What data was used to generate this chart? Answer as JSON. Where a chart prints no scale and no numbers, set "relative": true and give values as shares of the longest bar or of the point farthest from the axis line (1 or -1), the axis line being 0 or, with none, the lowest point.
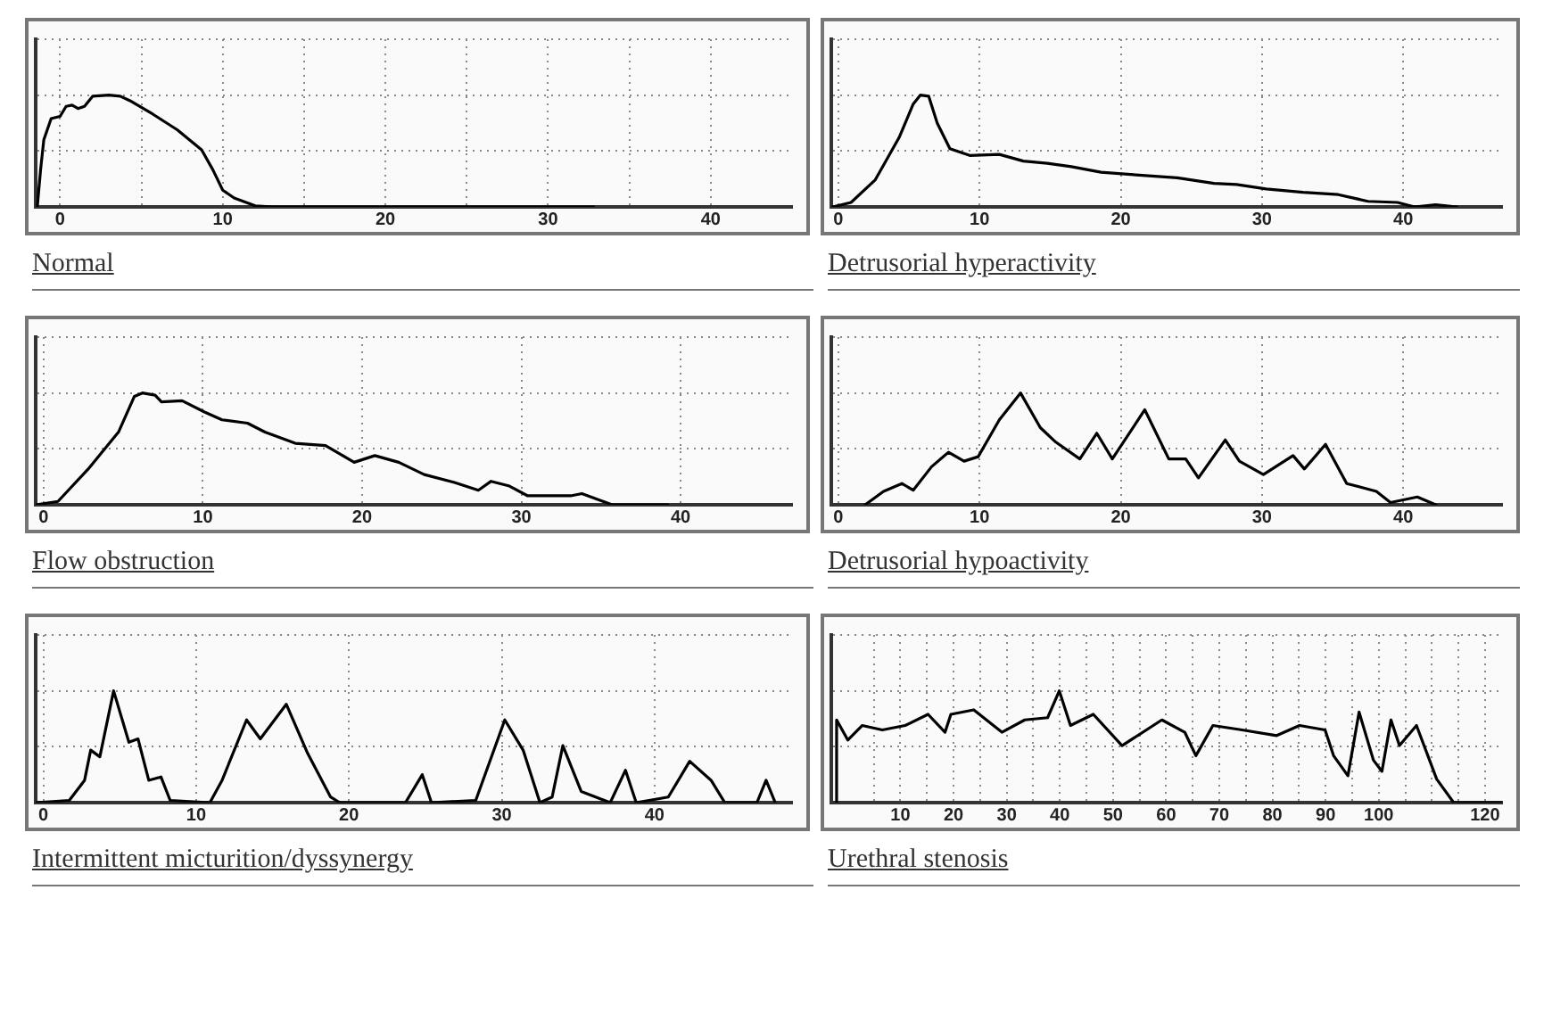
{
  "chart_data": [
    {
      "type": "line",
      "title": "Normal",
      "relative": true,
      "grid": true,
      "legend": false,
      "tick_labels": "x",
      "marker": "none",
      "xlim": [
        -1.5,
        45
      ],
      "xticks": [
        0,
        {
          "value": 5,
          "label": null
        },
        10,
        {
          "value": 15,
          "label": null
        },
        20,
        {
          "value": 25,
          "label": null
        },
        30,
        {
          "value": 35,
          "label": null
        },
        40
      ],
      "series": [
        {
          "color": "#000000",
          "x": [
            -1.4,
            -1.2,
            -1.0,
            -0.55,
            0,
            0.37,
            0.74,
            1.1,
            1.5,
            2.0,
            3.0,
            3.7,
            4.3,
            5.7,
            7.2,
            8.7,
            9.4,
            10,
            10.7,
            12,
            13.1,
            32.8
          ],
          "values": [
            0,
            0.33,
            0.6,
            0.79,
            0.81,
            0.9,
            0.91,
            0.88,
            0.9,
            0.99,
            1,
            0.99,
            0.95,
            0.83,
            0.69,
            0.51,
            0.33,
            0.15,
            0.08,
            0.01,
            0,
            0
          ]
        }
      ]
    },
    {
      "type": "line",
      "title": "Detrusorial hyperactivity",
      "relative": true,
      "grid": true,
      "legend": false,
      "tick_labels": "x",
      "marker": "none",
      "xlim": [
        -0.5,
        47
      ],
      "xticks": [
        0,
        10,
        20,
        30,
        40
      ],
      "series": [
        {
          "color": "#000000",
          "x": [
            -0.4,
            0.9,
            2.6,
            4.3,
            5.3,
            5.8,
            6.4,
            7.0,
            7.9,
            9.3,
            11.4,
            13.1,
            14.8,
            16.5,
            18.6,
            20.7,
            24.0,
            26.6,
            28.2,
            30.3,
            32.9,
            35.4,
            37.5,
            39.6,
            40.8,
            42.3,
            43.8
          ],
          "values": [
            0,
            0.04,
            0.24,
            0.62,
            0.92,
            1,
            0.99,
            0.75,
            0.52,
            0.46,
            0.47,
            0.41,
            0.39,
            0.36,
            0.31,
            0.29,
            0.26,
            0.21,
            0.2,
            0.16,
            0.13,
            0.11,
            0.05,
            0.04,
            0,
            0.02,
            0
          ]
        }
      ]
    },
    {
      "type": "line",
      "title": "Flow obstruction",
      "relative": true,
      "grid": true,
      "legend": false,
      "tick_labels": "x",
      "marker": "none",
      "xlim": [
        -0.5,
        47
      ],
      "xticks": [
        0,
        10,
        20,
        30,
        40
      ],
      "series": [
        {
          "color": "#000000",
          "x": [
            -0.5,
            0.9,
            2.8,
            4.7,
            5.7,
            6.2,
            7.0,
            7.4,
            8.7,
            10.1,
            11.2,
            12.8,
            13.9,
            15.8,
            17.7,
            19.5,
            20.8,
            22.3,
            23.9,
            25.8,
            27.3,
            28.1,
            29.2,
            30.4,
            33.1,
            33.8,
            35.7,
            39.2
          ],
          "values": [
            0,
            0.03,
            0.32,
            0.65,
            0.97,
            1,
            0.98,
            0.92,
            0.93,
            0.83,
            0.76,
            0.73,
            0.65,
            0.55,
            0.53,
            0.38,
            0.44,
            0.38,
            0.27,
            0.2,
            0.13,
            0.21,
            0.17,
            0.08,
            0.08,
            0.1,
            0,
            0
          ]
        }
      ]
    },
    {
      "type": "line",
      "title": "Detrusorial hypoactivity",
      "relative": true,
      "grid": true,
      "legend": false,
      "tick_labels": "x",
      "marker": "none",
      "xlim": [
        -0.5,
        47
      ],
      "xticks": [
        0,
        10,
        20,
        30,
        40
      ],
      "series": [
        {
          "color": "#000000",
          "x": [
            1.9,
            3.2,
            4.5,
            5.3,
            6.6,
            7.8,
            8.9,
            9.9,
            11.4,
            12.9,
            14.3,
            15.4,
            17.1,
            18.3,
            19.4,
            21.7,
            23.4,
            24.6,
            25.5,
            27.4,
            28.4,
            30.1,
            32.2,
            33.0,
            34.5,
            36.0,
            38.1,
            39.1,
            41.0,
            42.3
          ],
          "values": [
            0,
            0.12,
            0.19,
            0.13,
            0.34,
            0.47,
            0.39,
            0.43,
            0.76,
            1,
            0.69,
            0.56,
            0.41,
            0.64,
            0.41,
            0.85,
            0.41,
            0.41,
            0.24,
            0.58,
            0.39,
            0.27,
            0.44,
            0.32,
            0.54,
            0.19,
            0.12,
            0.02,
            0.07,
            0
          ]
        }
      ]
    },
    {
      "type": "line",
      "title": "Intermittent micturition/dyssynergy",
      "relative": true,
      "grid": true,
      "legend": false,
      "tick_labels": "x",
      "marker": "none",
      "xlim": [
        -0.5,
        49
      ],
      "xticks": [
        0,
        10,
        20,
        30,
        40
      ],
      "series": [
        {
          "color": "#000000",
          "x": [
            -0.5,
            1.7,
            2.7,
            3.1,
            3.7,
            4.6,
            5.6,
            6.2,
            6.9,
            7.7,
            8.3,
            10.9,
            11.7,
            13.3,
            14.2,
            15.9,
            17.3,
            18.8,
            19.4,
            23.7,
            24.8,
            25.4,
            28.3,
            30.2,
            31.4,
            32.5,
            33.3,
            34.0,
            35.2,
            37.1,
            38.1,
            38.8,
            40.9,
            42.3,
            43.7,
            44.6,
            46.7,
            47.3,
            47.9
          ],
          "values": [
            0,
            0.02,
            0.2,
            0.47,
            0.41,
            1,
            0.54,
            0.57,
            0.2,
            0.23,
            0.02,
            0,
            0.2,
            0.74,
            0.57,
            0.88,
            0.44,
            0.05,
            0,
            0,
            0.25,
            0,
            0.02,
            0.74,
            0.47,
            0,
            0.05,
            0.51,
            0.1,
            0,
            0.29,
            0,
            0.05,
            0.37,
            0.2,
            0,
            0,
            0.2,
            0
          ]
        }
      ]
    },
    {
      "type": "line",
      "title": "Urethral stenosis",
      "relative": true,
      "grid": true,
      "legend": false,
      "tick_labels": "x",
      "marker": "none",
      "xlim": [
        -3,
        123.2
      ],
      "xticks": [
        {
          "value": 5,
          "label": null
        },
        10,
        {
          "value": 15,
          "label": null
        },
        20,
        {
          "value": 25,
          "label": null
        },
        30,
        {
          "value": 35,
          "label": null
        },
        40,
        {
          "value": 45,
          "label": null
        },
        50,
        {
          "value": 55,
          "label": null
        },
        60,
        {
          "value": 65,
          "label": null
        },
        70,
        {
          "value": 75,
          "label": null
        },
        80,
        {
          "value": 85,
          "label": null
        },
        90,
        {
          "value": 95,
          "label": null
        },
        100,
        {
          "value": 105,
          "label": null
        },
        {
          "value": 110,
          "label": null
        },
        {
          "value": 115,
          "label": null
        },
        120
      ],
      "series": [
        {
          "color": "#000000",
          "x": [
            -2.0,
            -2.0,
            0.1,
            2.8,
            6.6,
            10.9,
            15.2,
            18.4,
            19.5,
            23.8,
            29.1,
            33.4,
            37.7,
            39.9,
            42.0,
            46.3,
            51.7,
            59.2,
            63.5,
            65.6,
            68.8,
            74.3,
            80.8,
            85.1,
            89.9,
            91.5,
            94.2,
            96.3,
            99.0,
            100.6,
            102.3,
            103.9,
            107.1,
            110.9,
            114.1,
            123.2
          ],
          "values": [
            0,
            0.74,
            0.56,
            0.69,
            0.65,
            0.69,
            0.79,
            0.63,
            0.79,
            0.83,
            0.63,
            0.74,
            0.76,
            1,
            0.69,
            0.79,
            0.51,
            0.74,
            0.63,
            0.42,
            0.69,
            0.65,
            0.6,
            0.69,
            0.65,
            0.42,
            0.24,
            0.81,
            0.38,
            0.28,
            0.74,
            0.51,
            0.69,
            0.21,
            0,
            0
          ]
        }
      ]
    }
  ]
}
